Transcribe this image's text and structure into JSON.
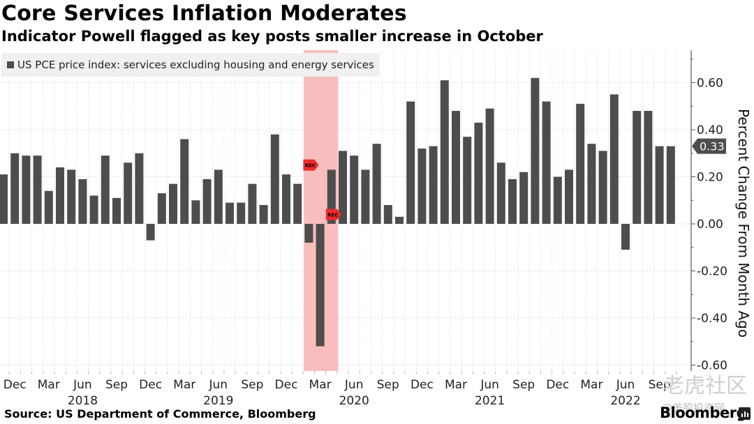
{
  "header": {
    "title": "Core Services Inflation Moderates",
    "subtitle": "Indicator Powell flagged as key posts smaller increase in October"
  },
  "footer": {
    "source": "Source: US Department of Commerce, Bloomberg",
    "brand": "Bloomberg"
  },
  "watermark": {
    "line1": "老虎社区",
    "line2": "@美股投资网"
  },
  "colors": {
    "bar": "#4d4d4d",
    "recession_band": "#f9b6b6",
    "rec_marker": "#ee2a2a",
    "grid": "#e4e4e4",
    "last_value_tag": "#4d4d4d"
  },
  "chart_data": {
    "type": "bar",
    "title": "Core Services Inflation Moderates",
    "subtitle": "Indicator Powell flagged as key posts smaller increase in October",
    "legend": {
      "entries": [
        "US PCE price index: services excluding housing and energy services"
      ],
      "placement": "top-left"
    },
    "xlabel": "",
    "ylabel": "Percent Change From Month Ago",
    "y_axis_side": "right",
    "ylim": [
      -0.6,
      0.72
    ],
    "yticks": [
      -0.6,
      -0.4,
      -0.2,
      0.0,
      0.2,
      0.4,
      0.6
    ],
    "ytick_labels": [
      "-0.60",
      "-0.40",
      "-0.20",
      "0.00",
      "0.20",
      "0.40",
      "0.60"
    ],
    "grid": true,
    "x_start": "2017-11",
    "x_tick_labels": [
      {
        "month": "2017-12",
        "label": "Dec"
      },
      {
        "month": "2018-03",
        "label": "Mar"
      },
      {
        "month": "2018-06",
        "label": "Jun"
      },
      {
        "month": "2018-09",
        "label": "Sep"
      },
      {
        "month": "2018-12",
        "label": "Dec"
      },
      {
        "month": "2019-03",
        "label": "Mar"
      },
      {
        "month": "2019-06",
        "label": "Jun"
      },
      {
        "month": "2019-09",
        "label": "Sep"
      },
      {
        "month": "2019-12",
        "label": "Dec"
      },
      {
        "month": "2020-03",
        "label": "Mar"
      },
      {
        "month": "2020-06",
        "label": "Jun"
      },
      {
        "month": "2020-09",
        "label": "Sep"
      },
      {
        "month": "2020-12",
        "label": "Dec"
      },
      {
        "month": "2021-03",
        "label": "Mar"
      },
      {
        "month": "2021-06",
        "label": "Jun"
      },
      {
        "month": "2021-09",
        "label": "Sep"
      },
      {
        "month": "2021-12",
        "label": "Dec"
      },
      {
        "month": "2022-03",
        "label": "Mar"
      },
      {
        "month": "2022-06",
        "label": "Jun"
      },
      {
        "month": "2022-09",
        "label": "Sep"
      }
    ],
    "year_labels": [
      {
        "month": "2018-06",
        "label": "2018"
      },
      {
        "month": "2019-06",
        "label": "2019"
      },
      {
        "month": "2020-06",
        "label": "2020"
      },
      {
        "month": "2021-06",
        "label": "2021"
      },
      {
        "month": "2022-06",
        "label": "2022"
      }
    ],
    "series": [
      {
        "name": "US PCE price index: services excluding housing and energy services",
        "x": [
          "2017-11",
          "2017-12",
          "2018-01",
          "2018-02",
          "2018-03",
          "2018-04",
          "2018-05",
          "2018-06",
          "2018-07",
          "2018-08",
          "2018-09",
          "2018-10",
          "2018-11",
          "2018-12",
          "2019-01",
          "2019-02",
          "2019-03",
          "2019-04",
          "2019-05",
          "2019-06",
          "2019-07",
          "2019-08",
          "2019-09",
          "2019-10",
          "2019-11",
          "2019-12",
          "2020-01",
          "2020-02",
          "2020-03",
          "2020-04",
          "2020-05",
          "2020-06",
          "2020-07",
          "2020-08",
          "2020-09",
          "2020-10",
          "2020-11",
          "2020-12",
          "2021-01",
          "2021-02",
          "2021-03",
          "2021-04",
          "2021-05",
          "2021-06",
          "2021-07",
          "2021-08",
          "2021-09",
          "2021-10",
          "2021-11",
          "2021-12",
          "2022-01",
          "2022-02",
          "2022-03",
          "2022-04",
          "2022-05",
          "2022-06",
          "2022-07",
          "2022-08",
          "2022-09",
          "2022-10"
        ],
        "values": [
          0.21,
          0.3,
          0.29,
          0.29,
          0.14,
          0.24,
          0.23,
          0.19,
          0.12,
          0.29,
          0.11,
          0.26,
          0.3,
          -0.07,
          0.13,
          0.17,
          0.36,
          0.1,
          0.19,
          0.23,
          0.09,
          0.09,
          0.17,
          0.08,
          0.38,
          0.21,
          0.17,
          -0.08,
          -0.52,
          0.23,
          0.31,
          0.29,
          0.23,
          0.34,
          0.08,
          0.03,
          0.52,
          0.32,
          0.33,
          0.61,
          0.48,
          0.37,
          0.43,
          0.49,
          0.26,
          0.19,
          0.22,
          0.62,
          0.52,
          0.2,
          0.23,
          0.51,
          0.34,
          0.31,
          0.55,
          -0.11,
          0.48,
          0.48,
          0.33,
          0.33
        ]
      }
    ],
    "last_value_label": "0.33",
    "annotations": [
      {
        "type": "shaded-band",
        "label": "recession",
        "from": "2020-02",
        "to": "2020-04"
      },
      {
        "type": "marker",
        "label": "REC",
        "month": "2020-02",
        "value": 0.25
      },
      {
        "type": "marker",
        "label": "REC",
        "month": "2020-04",
        "value": 0.04
      }
    ]
  }
}
